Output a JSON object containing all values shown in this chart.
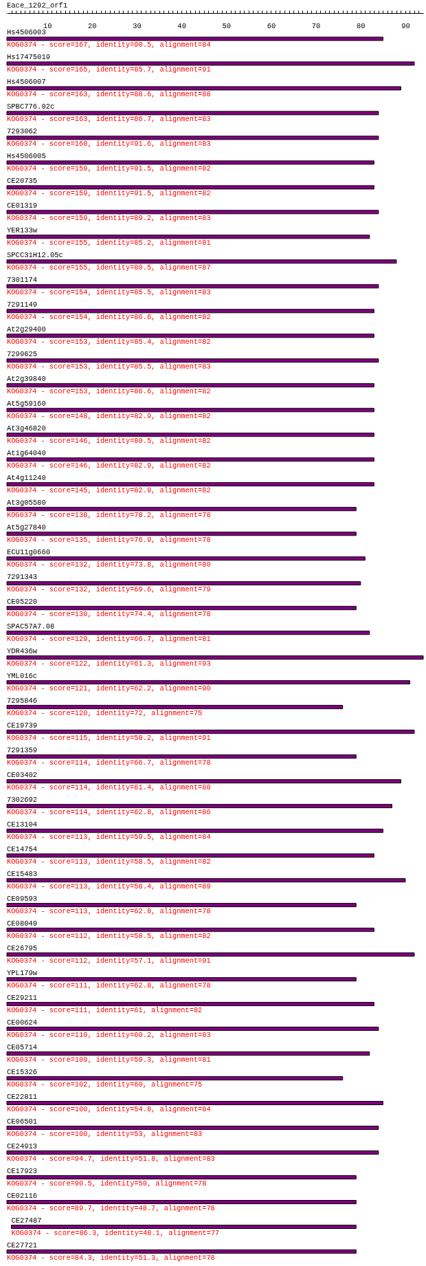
{
  "chart_data": {
    "type": "bar",
    "orientation": "horizontal",
    "title": "Eace_1292_orf1",
    "color": "#800080",
    "xlim": [
      1,
      94
    ],
    "xticks": [
      {
        "value": 2,
        "label": null
      },
      {
        "value": 3,
        "label": null
      },
      {
        "value": 4,
        "label": null
      },
      {
        "value": 5,
        "label": null
      },
      {
        "value": 6,
        "label": null
      },
      {
        "value": 7,
        "label": null
      },
      {
        "value": 8,
        "label": null
      },
      {
        "value": 9,
        "label": null
      },
      10,
      {
        "value": 11,
        "label": null
      },
      {
        "value": 12,
        "label": null
      },
      {
        "value": 13,
        "label": null
      },
      {
        "value": 14,
        "label": null
      },
      {
        "value": 15,
        "label": null
      },
      {
        "value": 16,
        "label": null
      },
      {
        "value": 17,
        "label": null
      },
      {
        "value": 18,
        "label": null
      },
      {
        "value": 19,
        "label": null
      },
      20,
      {
        "value": 21,
        "label": null
      },
      {
        "value": 22,
        "label": null
      },
      {
        "value": 23,
        "label": null
      },
      {
        "value": 24,
        "label": null
      },
      {
        "value": 25,
        "label": null
      },
      {
        "value": 26,
        "label": null
      },
      {
        "value": 27,
        "label": null
      },
      {
        "value": 28,
        "label": null
      },
      {
        "value": 29,
        "label": null
      },
      30,
      {
        "value": 31,
        "label": null
      },
      {
        "value": 32,
        "label": null
      },
      {
        "value": 33,
        "label": null
      },
      {
        "value": 34,
        "label": null
      },
      {
        "value": 35,
        "label": null
      },
      {
        "value": 36,
        "label": null
      },
      {
        "value": 37,
        "label": null
      },
      {
        "value": 38,
        "label": null
      },
      {
        "value": 39,
        "label": null
      },
      40,
      {
        "value": 41,
        "label": null
      },
      {
        "value": 42,
        "label": null
      },
      {
        "value": 43,
        "label": null
      },
      {
        "value": 44,
        "label": null
      },
      {
        "value": 45,
        "label": null
      },
      {
        "value": 46,
        "label": null
      },
      {
        "value": 47,
        "label": null
      },
      {
        "value": 48,
        "label": null
      },
      {
        "value": 49,
        "label": null
      },
      50,
      {
        "value": 51,
        "label": null
      },
      {
        "value": 52,
        "label": null
      },
      {
        "value": 53,
        "label": null
      },
      {
        "value": 54,
        "label": null
      },
      {
        "value": 55,
        "label": null
      },
      {
        "value": 56,
        "label": null
      },
      {
        "value": 57,
        "label": null
      },
      {
        "value": 58,
        "label": null
      },
      {
        "value": 59,
        "label": null
      },
      60,
      {
        "value": 61,
        "label": null
      },
      {
        "value": 62,
        "label": null
      },
      {
        "value": 63,
        "label": null
      },
      {
        "value": 64,
        "label": null
      },
      {
        "value": 65,
        "label": null
      },
      {
        "value": 66,
        "label": null
      },
      {
        "value": 67,
        "label": null
      },
      {
        "value": 68,
        "label": null
      },
      {
        "value": 69,
        "label": null
      },
      70,
      {
        "value": 71,
        "label": null
      },
      {
        "value": 72,
        "label": null
      },
      {
        "value": 73,
        "label": null
      },
      {
        "value": 74,
        "label": null
      },
      {
        "value": 75,
        "label": null
      },
      {
        "value": 76,
        "label": null
      },
      {
        "value": 77,
        "label": null
      },
      {
        "value": 78,
        "label": null
      },
      {
        "value": 79,
        "label": null
      },
      80,
      {
        "value": 81,
        "label": null
      },
      {
        "value": 82,
        "label": null
      },
      {
        "value": 83,
        "label": null
      },
      {
        "value": 84,
        "label": null
      },
      {
        "value": 85,
        "label": null
      },
      {
        "value": 86,
        "label": null
      },
      {
        "value": 87,
        "label": null
      },
      {
        "value": 88,
        "label": null
      },
      {
        "value": 89,
        "label": null
      },
      90,
      {
        "value": 91,
        "label": null
      },
      {
        "value": 92,
        "label": null
      },
      {
        "value": 93,
        "label": null
      }
    ],
    "categories": [
      "Hs4506003",
      "Hs17475019",
      "Hs4506007",
      "SPBC776.02c",
      "7293062",
      "Hs4506005",
      "CE20735",
      "CE01319",
      "YER133w",
      "SPCC31H12.05c",
      "7301174",
      "7291149",
      "At2g29400",
      "7299625",
      "At2g39840",
      "At5g59160",
      "At3g46820",
      "At1g64040",
      "At4g11240",
      "At3g05580",
      "At5g27840",
      "ECU11g0660",
      "7291343",
      "CE05220",
      "SPAC57A7.08",
      "YDR436w",
      "YML016c",
      "7295846",
      "CE19739",
      "7291359",
      "CE03402",
      "7302692",
      "CE13104",
      "CE14754",
      "CE15483",
      "CE09593",
      "CE08049",
      "CE26795",
      "YPL179w",
      "CE29211",
      "CE00624",
      "CE05714",
      "CE15326",
      "CE22811",
      "CE06501",
      "CE24913",
      "CE17923",
      "CE02116",
      "CE27487",
      "CE27721"
    ],
    "base": [
      1,
      1,
      1,
      1,
      1,
      1,
      1,
      1,
      1,
      1,
      1,
      1,
      1,
      1,
      1,
      1,
      1,
      1,
      1,
      1,
      1,
      1,
      1,
      1,
      1,
      1,
      1,
      1,
      1,
      1,
      1,
      1,
      1,
      1,
      1,
      1,
      1,
      1,
      1,
      1,
      1,
      1,
      1,
      1,
      1,
      1,
      1,
      1,
      2,
      1
    ],
    "values": [
      84,
      91,
      88,
      83,
      83,
      82,
      82,
      83,
      81,
      87,
      83,
      82,
      82,
      83,
      82,
      82,
      82,
      82,
      82,
      78,
      78,
      80,
      79,
      78,
      81,
      93,
      90,
      75,
      91,
      78,
      88,
      86,
      84,
      82,
      89,
      78,
      82,
      91,
      78,
      82,
      83,
      81,
      75,
      84,
      83,
      83,
      78,
      78,
      77,
      78
    ],
    "value_labels": [
      "KOG0374 - score=167, identity=90.5, alignment=84",
      "KOG0374 - score=165, identity=85.7, alignment=91",
      "KOG0374 - score=163, identity=88.6, alignment=88",
      "KOG0374 - score=163, identity=86.7, alignment=83",
      "KOG0374 - score=160, identity=91.6, alignment=83",
      "KOG0374 - score=159, identity=91.5, alignment=82",
      "KOG0374 - score=159, identity=91.5, alignment=82",
      "KOG0374 - score=159, identity=89.2, alignment=83",
      "KOG0374 - score=155, identity=85.2, alignment=81",
      "KOG0374 - score=155, identity=80.5, alignment=87",
      "KOG0374 - score=154, identity=85.5, alignment=83",
      "KOG0374 - score=154, identity=86.6, alignment=82",
      "KOG0374 - score=153, identity=85.4, alignment=82",
      "KOG0374 - score=153, identity=85.5, alignment=83",
      "KOG0374 - score=153, identity=86.6, alignment=82",
      "KOG0374 - score=148, identity=82.9, alignment=82",
      "KOG0374 - score=146, identity=80.5, alignment=82",
      "KOG0374 - score=146, identity=82.9, alignment=82",
      "KOG0374 - score=145, identity=82.9, alignment=82",
      "KOG0374 - score=138, identity=78.2, alignment=78",
      "KOG0374 - score=135, identity=76.9, alignment=78",
      "KOG0374 - score=132, identity=73.8, alignment=80",
      "KOG0374 - score=132, identity=69.6, alignment=79",
      "KOG0374 - score=130, identity=74.4, alignment=78",
      "KOG0374 - score=129, identity=66.7, alignment=81",
      "KOG0374 - score=122, identity=61.3, alignment=93",
      "KOG0374 - score=121, identity=62.2, alignment=90",
      "KOG0374 - score=120, identity=72, alignment=75",
      "KOG0374 - score=115, identity=58.2, alignment=91",
      "KOG0374 - score=114, identity=66.7, alignment=78",
      "KOG0374 - score=114, identity=61.4, alignment=88",
      "KOG0374 - score=114, identity=62.8, alignment=86",
      "KOG0374 - score=113, identity=59.5, alignment=84",
      "KOG0374 - score=113, identity=58.5, alignment=82",
      "KOG0374 - score=113, identity=58.4, alignment=89",
      "KOG0374 - score=113, identity=62.8, alignment=78",
      "KOG0374 - score=112, identity=58.5, alignment=82",
      "KOG0374 - score=112, identity=57.1, alignment=91",
      "KOG0374 - score=111, identity=62.8, alignment=78",
      "KOG0374 - score=111, identity=61, alignment=82",
      "KOG0374 - score=110, identity=60.2, alignment=83",
      "KOG0374 - score=109, identity=59.3, alignment=81",
      "KOG0374 - score=102, identity=60, alignment=75",
      "KOG0374 - score=100, identity=54.8, alignment=84",
      "KOG0374 - score=100, identity=53, alignment=83",
      "KOG0374 - score=94.7, identity=51.8, alignment=83",
      "KOG0374 - score=90.5, identity=50, alignment=78",
      "KOG0374 - score=89.7, identity=48.7, alignment=78",
      "KOG0374 - score=86.3, identity=48.1, alignment=77",
      "KOG0374 - score=84.3, identity=51.3, alignment=78"
    ]
  }
}
